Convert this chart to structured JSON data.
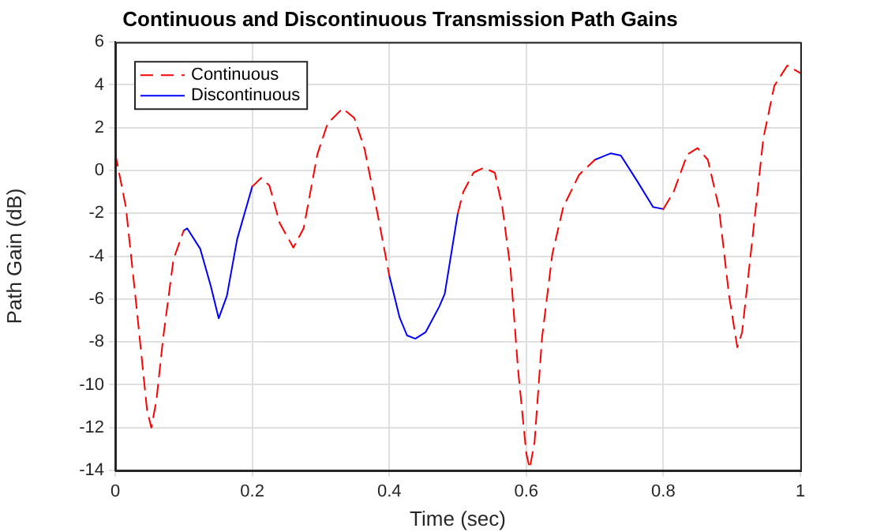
{
  "chart_data": {
    "type": "line",
    "title": "Continuous and Discontinuous Transmission Path Gains",
    "xlabel": "Time (sec)",
    "ylabel": "Path Gain (dB)",
    "xlim": [
      0,
      1
    ],
    "xticks": [
      0,
      0.2,
      0.4,
      0.6,
      0.8,
      1
    ],
    "ylim": [
      -14,
      6
    ],
    "yticks": [
      -14,
      -12,
      -10,
      -8,
      -6,
      -4,
      -2,
      0,
      2,
      4,
      6
    ],
    "grid": true,
    "legend": "top left",
    "marker": "none",
    "series": [
      {
        "name": "Continuous",
        "color": "#ff0000",
        "line_style": "dashed",
        "x": [
          0,
          0.0155,
          0.031,
          0.0465,
          0.0527,
          0.06,
          0.07,
          0.085,
          0.1,
          0.15,
          0.2,
          0.213,
          0.225,
          0.24,
          0.26,
          0.275,
          0.295,
          0.31,
          0.332,
          0.349,
          0.364,
          0.384,
          0.4,
          0.45,
          0.5,
          0.508,
          0.523,
          0.538,
          0.554,
          0.565,
          0.577,
          0.588,
          0.6,
          0.605,
          0.612,
          0.623,
          0.638,
          0.654,
          0.677,
          0.7,
          0.75,
          0.8,
          0.815,
          0.835,
          0.85,
          0.865,
          0.881,
          0.896,
          0.908,
          0.915,
          0.931,
          0.946,
          0.962,
          0.981,
          1
        ],
        "values": [
          0.8,
          -1.7,
          -6.35,
          -11.2,
          -12.0,
          -10.75,
          -7.8,
          -4.15,
          -2.8,
          null,
          -0.75,
          -0.35,
          -0.7,
          -2.45,
          -3.6,
          -2.7,
          0.75,
          2.2,
          2.9,
          2.45,
          1.0,
          -2.2,
          -4.9,
          null,
          -2.0,
          -1.0,
          -0.1,
          0.13,
          -0.1,
          -1.7,
          -4.6,
          -9.3,
          -13.2,
          -13.9,
          -12.7,
          -7.8,
          -3.9,
          -1.7,
          -0.2,
          0.5,
          null,
          -1.8,
          -1.0,
          0.75,
          1.05,
          0.5,
          -1.7,
          -5.85,
          -8.25,
          -7.55,
          -2.9,
          1.5,
          3.95,
          4.9,
          4.55
        ]
      },
      {
        "name": "Discontinuous",
        "color": "#0000ff",
        "line_style": "solid",
        "x": [
          0.1,
          0.105,
          0.124,
          0.1395,
          0.151,
          0.163,
          0.178,
          0.2,
          0.3,
          0.4,
          0.415,
          0.426,
          0.438,
          0.453,
          0.473,
          0.481,
          0.5,
          0.6,
          0.7,
          0.723,
          0.738,
          0.762,
          0.785,
          0.8
        ],
        "values": [
          -2.8,
          -2.7,
          -3.65,
          -5.4,
          -6.9,
          -5.85,
          -3.2,
          -0.75,
          null,
          -4.9,
          -6.85,
          -7.7,
          -7.85,
          -7.55,
          -6.35,
          -5.75,
          -2.0,
          null,
          0.5,
          0.8,
          0.7,
          -0.5,
          -1.7,
          -1.8
        ]
      }
    ]
  }
}
